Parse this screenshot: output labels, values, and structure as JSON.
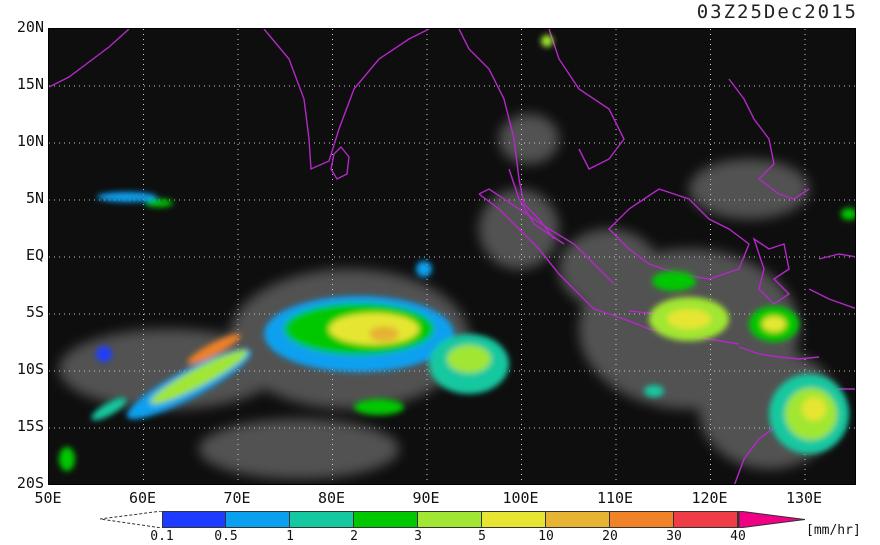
{
  "timestamp": "03Z25Dec2015",
  "axes": {
    "lat_labels": [
      "20N",
      "15N",
      "10N",
      "5N",
      "EQ",
      "5S",
      "10S",
      "15S",
      "20S"
    ],
    "lon_labels": [
      "50E",
      "60E",
      "70E",
      "80E",
      "90E",
      "100E",
      "110E",
      "120E",
      "130E"
    ]
  },
  "colorbar": {
    "units": "[mm/hr]",
    "ticks": [
      "0.1",
      "0.5",
      "1",
      "2",
      "3",
      "5",
      "10",
      "20",
      "30",
      "40"
    ],
    "colors": [
      "#1e3cff",
      "#0aa0f0",
      "#14c8a0",
      "#00c800",
      "#a0e632",
      "#e6e632",
      "#e6b432",
      "#f08228",
      "#f03c46",
      "#f00082"
    ]
  },
  "colors": {
    "coastline": "#b428c8",
    "grid": "#c8c8c8",
    "background": "#0e0e0e"
  }
}
